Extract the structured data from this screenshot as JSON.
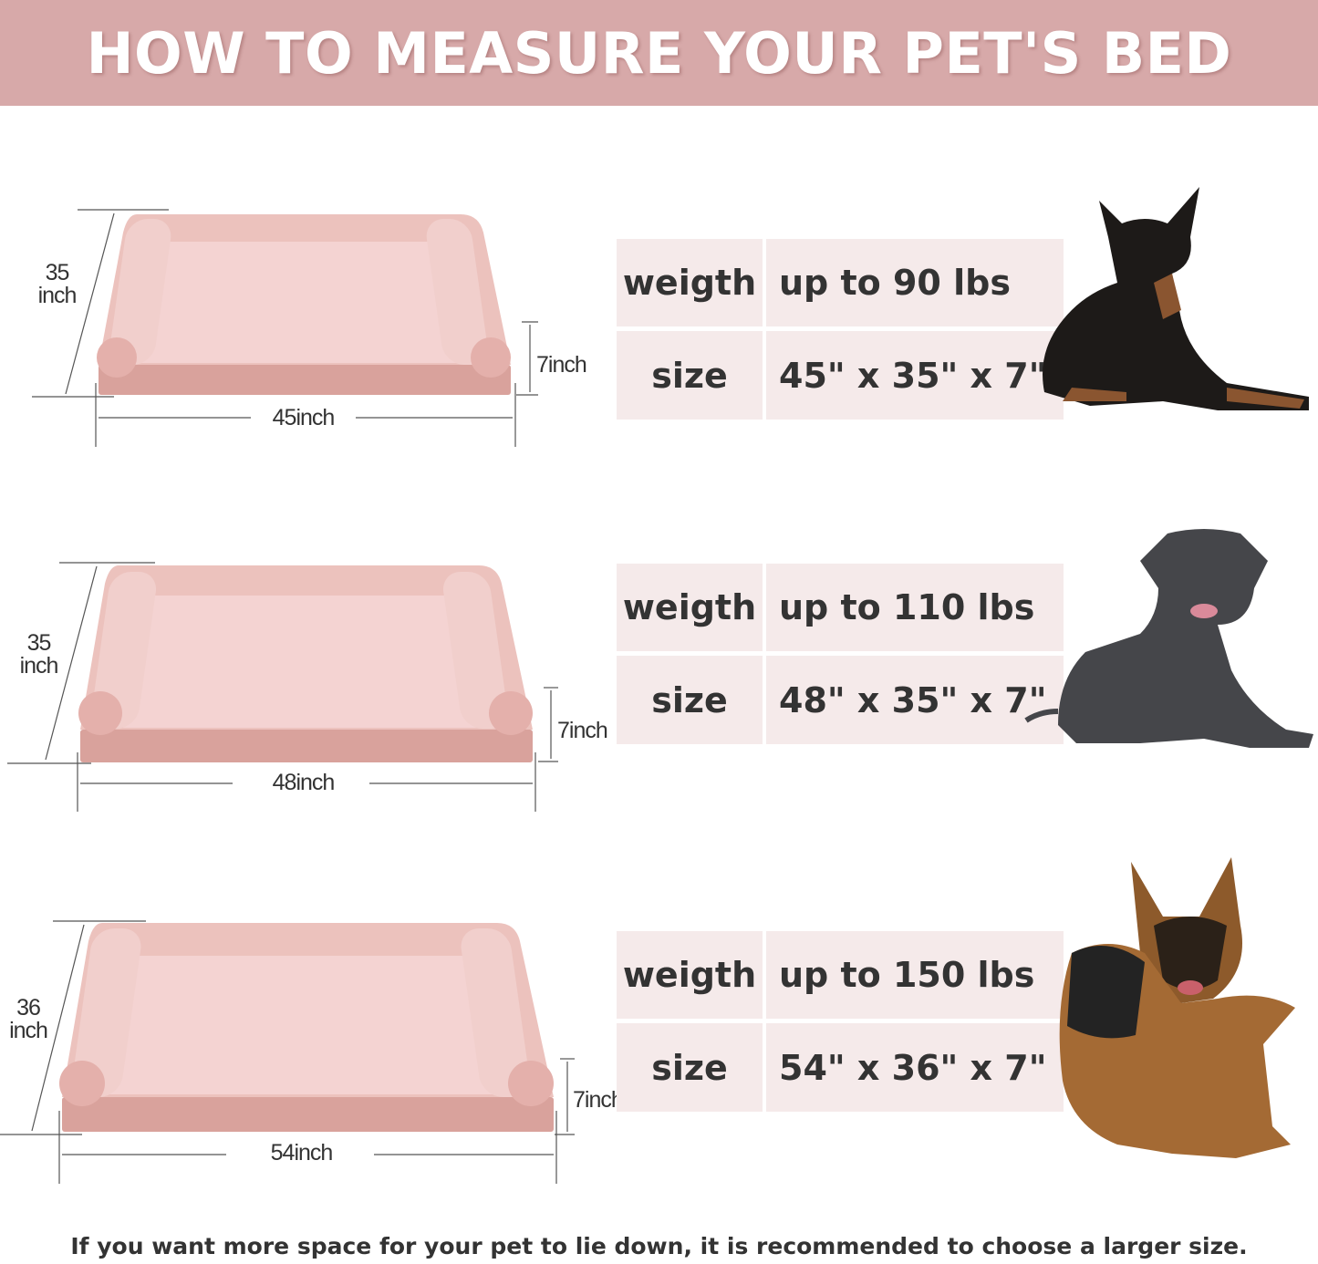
{
  "header": {
    "title": "HOW TO MEASURE YOUR PET'S BED",
    "background_color": "#d7a9a9"
  },
  "sizes": [
    {
      "length": "45inch",
      "width_value": "35",
      "width_unit": "inch",
      "height": "7inch",
      "weight_label": "weigth",
      "weight_value": "up to 90 lbs",
      "size_label": "size",
      "size_value": "45\" x 35\" x 7\"",
      "dog": "doberman"
    },
    {
      "length": "48inch",
      "width_value": "35",
      "width_unit": "inch",
      "height": "7inch",
      "weight_label": "weigth",
      "weight_value": "up to 110 lbs",
      "size_label": "size",
      "size_value": "48\" x 35\" x 7\"",
      "dog": "great-dane"
    },
    {
      "length": "54inch",
      "width_value": "36",
      "width_unit": "inch",
      "height": "7inch",
      "weight_label": "weigth",
      "weight_value": "up to 150 lbs",
      "size_label": "size",
      "size_value": "54\" x 36\" x 7\"",
      "dog": "german-shepherd"
    }
  ],
  "footer": {
    "note": "If you want more space for your pet to lie down, it is recommended to choose a larger size."
  },
  "colors": {
    "bed_pink": "#e8b4ae",
    "cell_bg": "#f5eaea"
  }
}
